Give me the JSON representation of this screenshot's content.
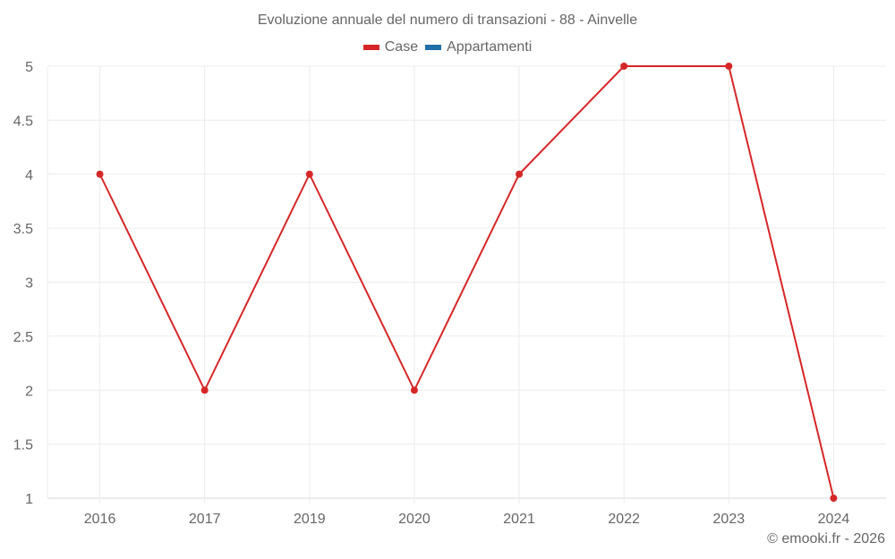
{
  "chart_data": {
    "type": "line",
    "title": "Evoluzione annuale del numero di transazioni - 88 - Ainvelle",
    "categories": [
      "2016",
      "2017",
      "2019",
      "2020",
      "2021",
      "2022",
      "2023",
      "2024"
    ],
    "series": [
      {
        "name": "Case",
        "color": "#d62728",
        "values": [
          4,
          2,
          4,
          2,
          4,
          5,
          5,
          1
        ]
      },
      {
        "name": "Appartamenti",
        "color": "#1f6fa8",
        "values": []
      }
    ],
    "xlabel": "",
    "ylabel": "",
    "ylim": [
      1,
      5
    ],
    "yticks": [
      "1",
      "1.5",
      "2",
      "2.5",
      "3",
      "3.5",
      "4",
      "4.5",
      "5"
    ],
    "grid": true,
    "legend_position": "top"
  },
  "legend": {
    "items": [
      {
        "label": "Case",
        "color": "#d62728"
      },
      {
        "label": "Appartamenti",
        "color": "#1f6fa8"
      }
    ]
  },
  "credit": "© emooki.fr - 2026"
}
